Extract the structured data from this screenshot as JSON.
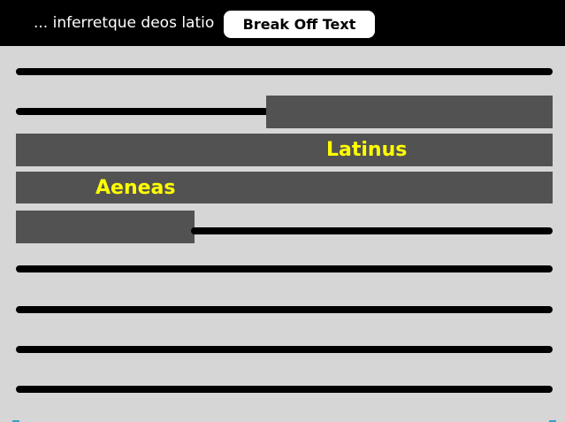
{
  "header": {
    "quote": "... inferretque deos latio",
    "button_label": "Break Off Text"
  },
  "passage": {
    "highlight_words": [
      "Latinus",
      "Aeneas"
    ]
  },
  "colors": {
    "background": "#d6d6d6",
    "header_background": "#000000",
    "text_line": "#000000",
    "text_block": "#525252",
    "highlight": "#ffff00",
    "button_background": "#ffffff"
  }
}
